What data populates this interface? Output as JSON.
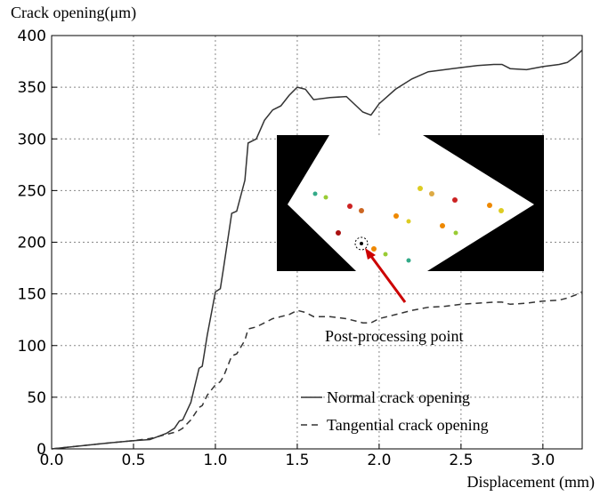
{
  "chart_data": {
    "type": "line",
    "y_label": "Crack opening(μm)",
    "x_label": "Displacement (mm)",
    "annotation": "Post-processing point",
    "xlim": [
      0,
      3.24
    ],
    "ylim": [
      0,
      400
    ],
    "xticks": [
      {
        "value": 0,
        "label": "0.0"
      },
      {
        "value": 0.5,
        "label": "0.5"
      },
      {
        "value": 1,
        "label": "1.0"
      },
      {
        "value": 1.5,
        "label": "1.5"
      },
      {
        "value": 2,
        "label": "2.0"
      },
      {
        "value": 2.5,
        "label": "2.5"
      },
      {
        "value": 3,
        "label": "3.0"
      }
    ],
    "yticks": [
      0,
      50,
      100,
      150,
      200,
      250,
      300,
      350,
      400
    ],
    "grid": true,
    "legend": "lower right",
    "x": [
      0,
      0.3,
      0.5,
      0.6,
      0.65,
      0.7,
      0.75,
      0.78,
      0.8,
      0.85,
      0.9,
      0.92,
      0.95,
      1.0,
      1.03,
      1.05,
      1.1,
      1.13,
      1.18,
      1.2,
      1.25,
      1.3,
      1.35,
      1.4,
      1.45,
      1.5,
      1.55,
      1.6,
      1.7,
      1.8,
      1.9,
      1.95,
      2.0,
      2.1,
      2.2,
      2.3,
      2.4,
      2.5,
      2.6,
      2.7,
      2.75,
      2.8,
      2.9,
      3.0,
      3.1,
      3.15,
      3.2,
      3.24
    ],
    "series": [
      {
        "name": "Normal crack opening",
        "color": "#333333",
        "dash": false,
        "values": [
          0,
          5,
          8,
          9,
          12,
          15,
          20,
          27,
          28,
          45,
          78,
          80,
          110,
          152,
          155,
          175,
          228,
          230,
          260,
          296,
          300,
          318,
          328,
          332,
          342,
          350,
          348,
          338,
          340,
          341,
          326,
          323,
          334,
          348,
          358,
          365,
          367,
          369,
          371,
          372,
          372,
          368,
          367,
          370,
          372,
          374,
          380,
          386
        ]
      },
      {
        "name": "Tangential crack opening",
        "color": "#333333",
        "dash": true,
        "values": [
          0,
          5,
          8,
          10,
          12,
          14,
          16,
          18,
          20,
          28,
          40,
          42,
          52,
          62,
          65,
          70,
          90,
          92,
          105,
          116,
          118,
          122,
          126,
          128,
          130,
          134,
          132,
          128,
          128,
          126,
          122,
          122,
          126,
          130,
          134,
          137,
          138,
          140,
          141,
          142,
          142,
          140,
          141,
          143,
          144,
          146,
          149,
          152
        ]
      }
    ]
  }
}
